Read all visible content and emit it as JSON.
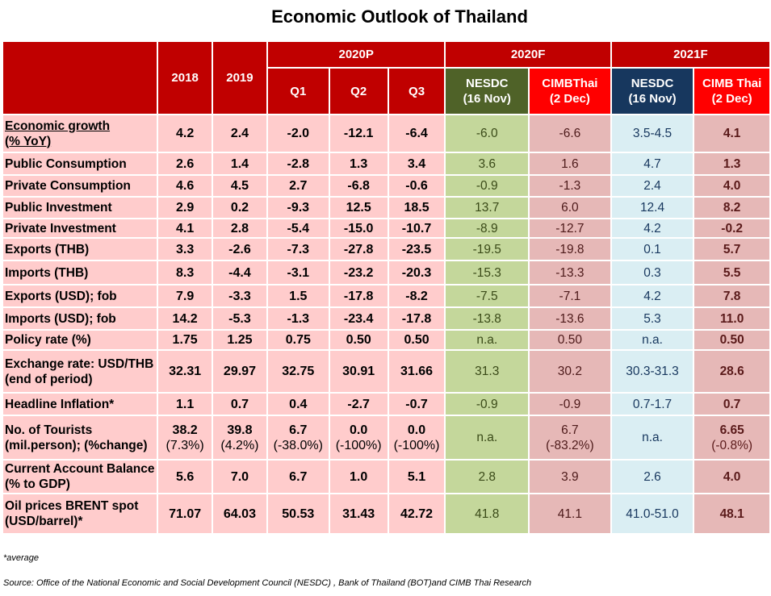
{
  "title": "Economic Outlook of Thailand",
  "headers": {
    "y2018": "2018",
    "y2019": "2019",
    "p2020": "2020P",
    "q1": "Q1",
    "q2": "Q2",
    "q3": "Q3",
    "f2020": "2020F",
    "f2021": "2021F",
    "nesdc20": [
      "NESDC",
      "(16 Nov)"
    ],
    "cimb20": [
      "CIMBThai",
      "(2 Dec)"
    ],
    "nesdc21": [
      "NESDC",
      "(16 Nov)"
    ],
    "cimb21": [
      "CIMB Thai",
      "(2 Dec)"
    ]
  },
  "rows": [
    {
      "label": [
        "Economic growth",
        "(% YoY)"
      ],
      "v": [
        "4.2",
        "2.4",
        "-2.0",
        "-12.1",
        "-6.4",
        "-6.0",
        "-6.6",
        "3.5-4.5",
        "4.1"
      ]
    },
    {
      "label": [
        "Public Consumption"
      ],
      "v": [
        "2.6",
        "1.4",
        "-2.8",
        "1.3",
        "3.4",
        "3.6",
        "1.6",
        "4.7",
        "1.3"
      ]
    },
    {
      "label": [
        "Private Consumption"
      ],
      "v": [
        "4.6",
        "4.5",
        "2.7",
        "-6.8",
        "-0.6",
        "-0.9",
        "-1.3",
        "2.4",
        "4.0"
      ]
    },
    {
      "label": [
        "Public Investment"
      ],
      "v": [
        "2.9",
        "0.2",
        "-9.3",
        "12.5",
        "18.5",
        "13.7",
        "6.0",
        "12.4",
        "8.2"
      ]
    },
    {
      "label": [
        "Private Investment"
      ],
      "v": [
        "4.1",
        "2.8",
        "-5.4",
        "-15.0",
        "-10.7",
        "-8.9",
        "-12.7",
        "4.2",
        "-0.2"
      ]
    },
    {
      "label": [
        "Exports (THB)"
      ],
      "v": [
        "3.3",
        "-2.6",
        "-7.3",
        "-27.8",
        "-23.5",
        "-19.5",
        "-19.8",
        "0.1",
        "5.7"
      ]
    },
    {
      "label": [
        "Imports (THB)"
      ],
      "v": [
        "8.3",
        "-4.4",
        "-3.1",
        "-23.2",
        "-20.3",
        "-15.3",
        "-13.3",
        "0.3",
        "5.5"
      ]
    },
    {
      "label": [
        "Exports (USD); fob"
      ],
      "v": [
        "7.9",
        "-3.3",
        "1.5",
        "-17.8",
        "-8.2",
        "-7.5",
        "-7.1",
        "4.2",
        "7.8"
      ]
    },
    {
      "label": [
        "Imports (USD); fob"
      ],
      "v": [
        "14.2",
        "-5.3",
        "-1.3",
        "-23.4",
        "-17.8",
        "-13.8",
        "-13.6",
        "5.3",
        "11.0"
      ]
    },
    {
      "label": [
        "Policy rate (%)"
      ],
      "v": [
        "1.75",
        "1.25",
        "0.75",
        "0.50",
        "0.50",
        "n.a.",
        "0.50",
        "n.a.",
        "0.50"
      ]
    },
    {
      "label": [
        "Exchange rate: USD/THB",
        "(end of period)"
      ],
      "v": [
        "32.31",
        "29.97",
        "32.75",
        "30.91",
        "31.66",
        "31.3",
        "30.2",
        "30.3-31.3",
        "28.6"
      ]
    },
    {
      "label": [
        "Headline Inflation*"
      ],
      "v": [
        "1.1",
        "0.7",
        "0.4",
        "-2.7",
        "-0.7",
        "-0.9",
        "-0.9",
        "0.7-1.7",
        "0.7"
      ]
    },
    {
      "label": [
        "No. of Tourists",
        "(mil.person); (%change)"
      ],
      "v": [
        "38.2",
        "39.8",
        "6.7",
        "0.0",
        "0.0",
        "n.a.",
        "6.7",
        "n.a.",
        "6.65"
      ],
      "s": [
        "(7.3%)",
        "(4.2%)",
        "(-38.0%)",
        "(-100%)",
        "(-100%)",
        "",
        "(-83.2%)",
        "",
        "(-0.8%)"
      ]
    },
    {
      "label": [
        "Current Account Balance",
        "(% to GDP)"
      ],
      "v": [
        "5.6",
        "7.0",
        "6.7",
        "1.0",
        "5.1",
        "2.8",
        "3.9",
        "2.6",
        "4.0"
      ]
    },
    {
      "label": [
        "Oil prices BRENT spot",
        "(USD/barrel)*"
      ],
      "v": [
        "71.07",
        "64.03",
        "50.53",
        "31.43",
        "42.72",
        "41.8",
        "41.1",
        "41.0-51.0",
        "48.1"
      ]
    }
  ],
  "note": "*average",
  "source": "Source: Office of the National Economic and Social Development Council (NESDC) , Bank of Thailand (BOT)and  CIMB Thai Research"
}
